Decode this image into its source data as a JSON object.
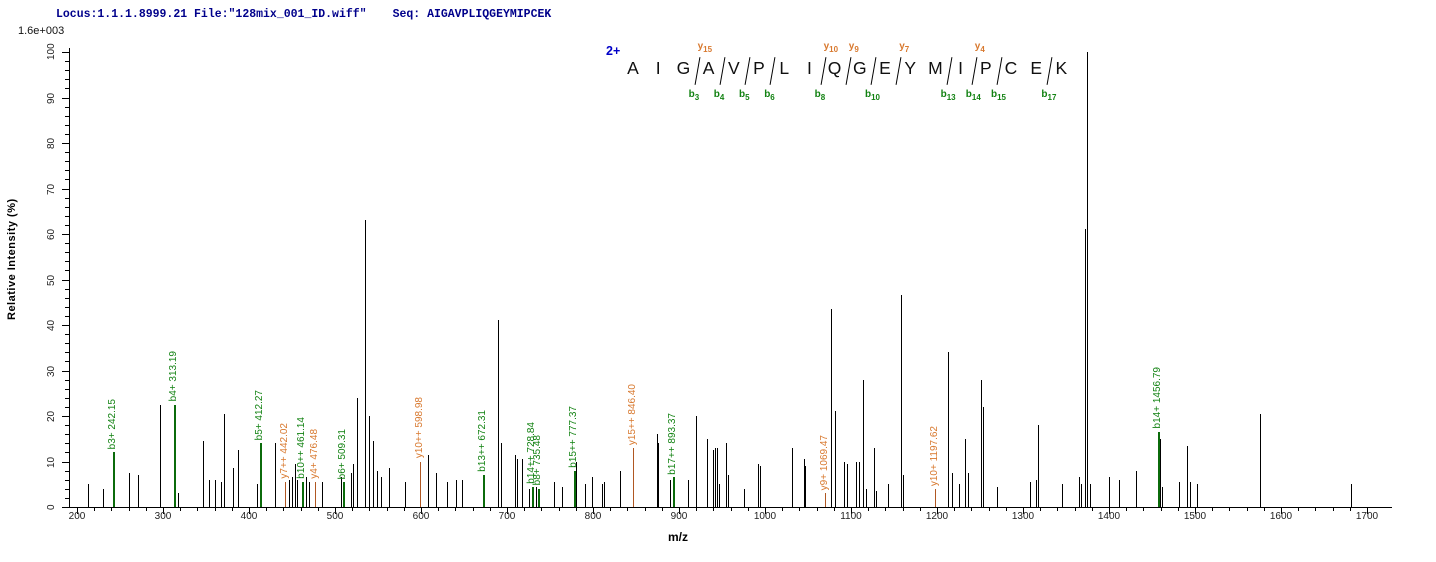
{
  "header": {
    "locus_file": "Locus:1.1.1.8999.21 File:\"128mix_001_ID.wiff\"",
    "seq_label": "Seq: AIGAVPLIQGEYMIPCEK",
    "intensity_scale": "1.6e+003"
  },
  "sequence": {
    "charge": "2+",
    "residues": [
      "A",
      "I",
      "G",
      "A",
      "V",
      "P",
      "L",
      "I",
      "Q",
      "G",
      "E",
      "Y",
      "M",
      "I",
      "P",
      "C",
      "E",
      "K"
    ],
    "cleavages": [
      {
        "after": 3,
        "b": "b3",
        "y": "y15"
      },
      {
        "after": 4,
        "b": "b4"
      },
      {
        "after": 5,
        "b": "b5"
      },
      {
        "after": 6,
        "b": "b6"
      },
      {
        "after": 8,
        "b": "b8",
        "y": "y10"
      },
      {
        "after": 9,
        "y": "y9"
      },
      {
        "after": 10,
        "b": "b10"
      },
      {
        "after": 11,
        "y": "y7"
      },
      {
        "after": 13,
        "b": "b13"
      },
      {
        "after": 14,
        "b": "b14",
        "y": "y4"
      },
      {
        "after": 15,
        "b": "b15"
      },
      {
        "after": 17,
        "b": "b17"
      }
    ]
  },
  "colors": {
    "b_ion_line": "#0b6b0b",
    "b_ion_label": "#128212",
    "y_ion_line": "#b05722",
    "y_ion_label": "#d8792f",
    "peak": "#000000",
    "header_text": "#00008b",
    "charge_text": "#0000c8"
  },
  "chart_data": {
    "type": "stick",
    "title": "",
    "xlabel": "m/z",
    "ylabel": "Relative Intensity (%)",
    "xlim": [
      200,
      1722
    ],
    "ylim": [
      0,
      100
    ],
    "x_major_ticks": [
      200,
      300,
      400,
      500,
      600,
      700,
      800,
      900,
      1000,
      1100,
      1200,
      1300,
      1400,
      1500,
      1600,
      1700
    ],
    "x_minor_step": 20,
    "y_major_ticks": [
      0,
      10,
      20,
      30,
      40,
      50,
      60,
      70,
      80,
      90,
      100
    ],
    "y_minor_step": 2,
    "grid": false,
    "legend": "none",
    "peaks": [
      {
        "mz": 213,
        "i": 5
      },
      {
        "mz": 230,
        "i": 4
      },
      {
        "mz": 242.15,
        "i": 12,
        "ion": "b",
        "label": "b3+ 242.15"
      },
      {
        "mz": 260,
        "i": 7.5
      },
      {
        "mz": 271,
        "i": 7
      },
      {
        "mz": 297,
        "i": 22.5
      },
      {
        "mz": 313.19,
        "i": 22.5,
        "ion": "b",
        "label": "b4+ 313.19"
      },
      {
        "mz": 317,
        "i": 3
      },
      {
        "mz": 347,
        "i": 14.5
      },
      {
        "mz": 354,
        "i": 6
      },
      {
        "mz": 360,
        "i": 6
      },
      {
        "mz": 368,
        "i": 5.5
      },
      {
        "mz": 371,
        "i": 20.5
      },
      {
        "mz": 381,
        "i": 8.5
      },
      {
        "mz": 387,
        "i": 12.5
      },
      {
        "mz": 409,
        "i": 5
      },
      {
        "mz": 412.27,
        "i": 14,
        "ion": "b",
        "label": "b5+ 412.27"
      },
      {
        "mz": 430,
        "i": 14
      },
      {
        "mz": 442.02,
        "i": 5.5,
        "ion": "y",
        "label": "y7++ 442.02"
      },
      {
        "mz": 447,
        "i": 6
      },
      {
        "mz": 450,
        "i": 6.5
      },
      {
        "mz": 453,
        "i": 9.5
      },
      {
        "mz": 456,
        "i": 6
      },
      {
        "mz": 461.14,
        "i": 5.5,
        "ion": "b",
        "label": "b10++ 461.14"
      },
      {
        "mz": 466,
        "i": 6.5
      },
      {
        "mz": 470,
        "i": 5.5
      },
      {
        "mz": 476.48,
        "i": 5.5,
        "ion": "y",
        "label": "y4+ 476.48"
      },
      {
        "mz": 485,
        "i": 5.5
      },
      {
        "mz": 507,
        "i": 6.5
      },
      {
        "mz": 509.31,
        "i": 5.5,
        "ion": "b",
        "label": "b6+ 509.31"
      },
      {
        "mz": 519,
        "i": 7.5
      },
      {
        "mz": 521,
        "i": 9.5
      },
      {
        "mz": 526,
        "i": 24
      },
      {
        "mz": 534.5,
        "i": 63
      },
      {
        "mz": 540,
        "i": 20
      },
      {
        "mz": 544,
        "i": 14.5
      },
      {
        "mz": 549,
        "i": 8
      },
      {
        "mz": 553,
        "i": 6.5
      },
      {
        "mz": 563,
        "i": 8.5
      },
      {
        "mz": 581,
        "i": 5.5
      },
      {
        "mz": 598.98,
        "i": 10,
        "ion": "y",
        "label": "y10++ 598.98"
      },
      {
        "mz": 608,
        "i": 11.5
      },
      {
        "mz": 618,
        "i": 7.5
      },
      {
        "mz": 630,
        "i": 5.5
      },
      {
        "mz": 641,
        "i": 6
      },
      {
        "mz": 648,
        "i": 6
      },
      {
        "mz": 672.31,
        "i": 7,
        "ion": "b",
        "label": "b13++ 672.31"
      },
      {
        "mz": 689,
        "i": 41
      },
      {
        "mz": 693,
        "i": 14
      },
      {
        "mz": 709,
        "i": 11.5
      },
      {
        "mz": 712,
        "i": 10.5
      },
      {
        "mz": 718,
        "i": 10.5
      },
      {
        "mz": 725,
        "i": 4
      },
      {
        "mz": 728.84,
        "i": 4.5,
        "ion": "b",
        "label": "b14++ 728.84"
      },
      {
        "mz": 734,
        "i": 4.5
      },
      {
        "mz": 735.48,
        "i": 4,
        "ion": "b",
        "label": "b8+ 735.48"
      },
      {
        "mz": 755,
        "i": 5.5
      },
      {
        "mz": 764,
        "i": 4.5
      },
      {
        "mz": 777.37,
        "i": 8,
        "ion": "b",
        "label": "b15++ 777.37"
      },
      {
        "mz": 780,
        "i": 10
      },
      {
        "mz": 791,
        "i": 5
      },
      {
        "mz": 799,
        "i": 6.5
      },
      {
        "mz": 810,
        "i": 5
      },
      {
        "mz": 813,
        "i": 5.5
      },
      {
        "mz": 831,
        "i": 8
      },
      {
        "mz": 846.4,
        "i": 13,
        "ion": "y",
        "label": "y15++ 846.40"
      },
      {
        "mz": 874,
        "i": 16
      },
      {
        "mz": 876,
        "i": 14
      },
      {
        "mz": 890,
        "i": 6
      },
      {
        "mz": 893.37,
        "i": 6.5,
        "ion": "b",
        "label": "b17++ 893.37"
      },
      {
        "mz": 910,
        "i": 6
      },
      {
        "mz": 920,
        "i": 20
      },
      {
        "mz": 933,
        "i": 15
      },
      {
        "mz": 939,
        "i": 12.5
      },
      {
        "mz": 942,
        "i": 13
      },
      {
        "mz": 944,
        "i": 13
      },
      {
        "mz": 946,
        "i": 5
      },
      {
        "mz": 955,
        "i": 14
      },
      {
        "mz": 957,
        "i": 7
      },
      {
        "mz": 975,
        "i": 4
      },
      {
        "mz": 992,
        "i": 9.5
      },
      {
        "mz": 994,
        "i": 9
      },
      {
        "mz": 1031,
        "i": 13
      },
      {
        "mz": 1045,
        "i": 10.5
      },
      {
        "mz": 1047,
        "i": 9
      },
      {
        "mz": 1069.47,
        "i": 3,
        "ion": "y",
        "label": "y9+ 1069.47"
      },
      {
        "mz": 1077,
        "i": 43.5
      },
      {
        "mz": 1081,
        "i": 21
      },
      {
        "mz": 1092,
        "i": 10
      },
      {
        "mz": 1095,
        "i": 9.5
      },
      {
        "mz": 1106,
        "i": 10
      },
      {
        "mz": 1109,
        "i": 10
      },
      {
        "mz": 1114,
        "i": 28
      },
      {
        "mz": 1117,
        "i": 4
      },
      {
        "mz": 1127,
        "i": 13
      },
      {
        "mz": 1129,
        "i": 3.5
      },
      {
        "mz": 1143,
        "i": 5
      },
      {
        "mz": 1158,
        "i": 46.5
      },
      {
        "mz": 1161,
        "i": 7
      },
      {
        "mz": 1197.62,
        "i": 4,
        "ion": "y",
        "label": "y10+ 1197.62"
      },
      {
        "mz": 1213,
        "i": 34
      },
      {
        "mz": 1218,
        "i": 7.5
      },
      {
        "mz": 1226,
        "i": 5
      },
      {
        "mz": 1233,
        "i": 15
      },
      {
        "mz": 1236,
        "i": 7.5
      },
      {
        "mz": 1251,
        "i": 28
      },
      {
        "mz": 1253,
        "i": 22
      },
      {
        "mz": 1270,
        "i": 4.5
      },
      {
        "mz": 1308,
        "i": 5.5
      },
      {
        "mz": 1315,
        "i": 6
      },
      {
        "mz": 1317,
        "i": 18
      },
      {
        "mz": 1345,
        "i": 5
      },
      {
        "mz": 1365,
        "i": 6.5
      },
      {
        "mz": 1367,
        "i": 5
      },
      {
        "mz": 1372,
        "i": 61
      },
      {
        "mz": 1374,
        "i": 100
      },
      {
        "mz": 1378,
        "i": 5
      },
      {
        "mz": 1400,
        "i": 6.5
      },
      {
        "mz": 1412,
        "i": 6
      },
      {
        "mz": 1431,
        "i": 8
      },
      {
        "mz": 1456.79,
        "i": 16.5,
        "ion": "b",
        "label": "b14+ 1456.79"
      },
      {
        "mz": 1459,
        "i": 15
      },
      {
        "mz": 1462,
        "i": 4.5
      },
      {
        "mz": 1481,
        "i": 5.5
      },
      {
        "mz": 1491,
        "i": 13.5
      },
      {
        "mz": 1494,
        "i": 5.5
      },
      {
        "mz": 1502,
        "i": 5
      },
      {
        "mz": 1575,
        "i": 20.5
      },
      {
        "mz": 1681,
        "i": 5
      }
    ]
  }
}
